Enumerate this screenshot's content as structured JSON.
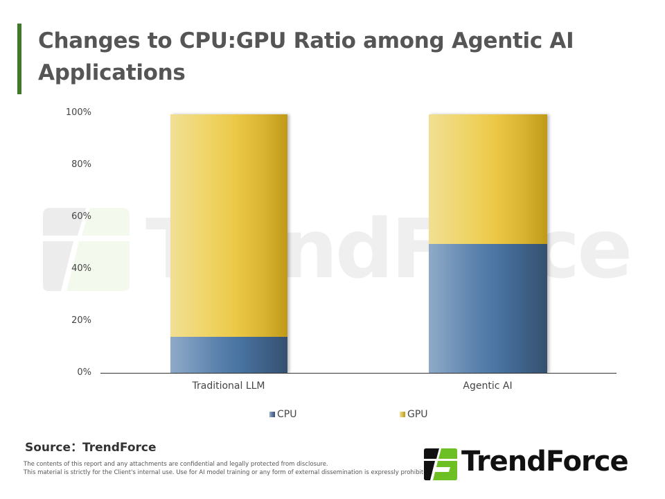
{
  "header": {
    "title": "Changes to CPU:GPU Ratio among Agentic AI Applications",
    "accent_color": "#3e7b27"
  },
  "watermark": {
    "text": "TrendForce"
  },
  "chart_data": {
    "type": "bar",
    "stacked": true,
    "percent_stacked": true,
    "title": "Changes to CPU:GPU Ratio among Agentic AI Applications",
    "xlabel": "",
    "ylabel": "",
    "categories": [
      "Traditional LLM",
      "Agentic AI"
    ],
    "series": [
      {
        "name": "CPU",
        "values": [
          14,
          50
        ],
        "color": "#4872a0"
      },
      {
        "name": "GPU",
        "values": [
          86,
          50
        ],
        "color": "#ecc947"
      }
    ],
    "ylim": [
      0,
      100
    ],
    "yticks": [
      "0%",
      "20%",
      "40%",
      "60%",
      "80%",
      "100%"
    ],
    "grid": false,
    "legend_position": "bottom"
  },
  "legend": {
    "cpu_label": "CPU",
    "gpu_label": "GPU"
  },
  "footer": {
    "source": "Source：TrendForce",
    "disclaimer_line1": "The contents of this report and any attachments are confidential and legally protected from disclosure.",
    "disclaimer_line2": "This material is strictly for the Client's internal use. Use for AI model training or any form of external dissemination is expressly prohibited.",
    "logo_text": "TrendForce",
    "logo_accent": "#6cc024"
  }
}
